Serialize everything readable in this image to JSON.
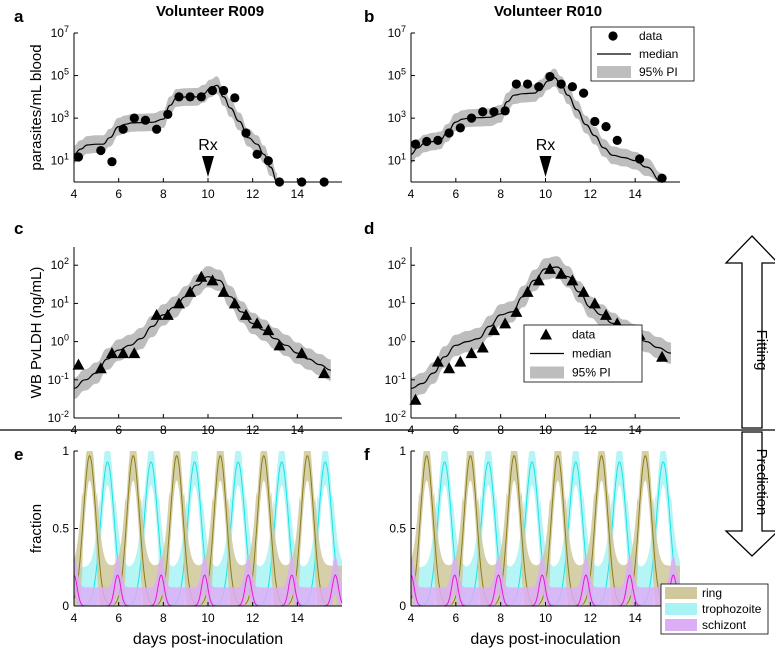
{
  "figure": {
    "titles": [
      "Volunteer R009",
      "Volunteer R010"
    ],
    "side_labels": {
      "fitting": "Fitting",
      "prediction": "Prediction"
    }
  },
  "colors": {
    "pi_band": "#bdbdbd",
    "ring": "#8b7d19",
    "ring_band": "#cfc89a",
    "trophozoite": "#19e5e5",
    "trophozoite_band": "#a8f3f3",
    "schizont": "#e619d6",
    "schizont_band": "#dcaef6"
  },
  "chart_data": [
    {
      "panel": "a",
      "type": "scatter",
      "title": "Volunteer R009",
      "ylabel": "parasites/mL blood",
      "xlabel": "",
      "yscale": "log",
      "ylim": [
        1,
        10000000
      ],
      "xlim": [
        4,
        16
      ],
      "xticks": [
        "4",
        "6",
        "8",
        "10",
        "12",
        "14"
      ],
      "yticks": [
        "10^1",
        "10^3",
        "10^5",
        "10^7"
      ],
      "annotation": {
        "text": "Rx",
        "x": 10
      },
      "series": [
        {
          "name": "data",
          "points": [
            [
              4.2,
              15
            ],
            [
              5.2,
              30
            ],
            [
              5.7,
              9
            ],
            [
              6.2,
              300
            ],
            [
              6.7,
              1000
            ],
            [
              7.2,
              800
            ],
            [
              7.7,
              300
            ],
            [
              8.2,
              1500
            ],
            [
              8.7,
              10000
            ],
            [
              9.2,
              10000
            ],
            [
              9.7,
              10000
            ],
            [
              10.2,
              20000
            ],
            [
              10.7,
              20000
            ],
            [
              11.2,
              9000
            ],
            [
              11.7,
              200
            ],
            [
              12.2,
              20
            ],
            [
              12.7,
              10
            ],
            [
              13.2,
              1
            ],
            [
              14.2,
              1
            ],
            [
              15.2,
              1
            ]
          ]
        },
        {
          "name": "median",
          "points": [
            [
              4.0,
              20
            ],
            [
              4.3,
              35
            ],
            [
              4.6,
              55
            ],
            [
              5.0,
              60
            ],
            [
              5.3,
              60
            ],
            [
              5.6,
              120
            ],
            [
              6.0,
              400
            ],
            [
              6.3,
              520
            ],
            [
              6.6,
              600
            ],
            [
              7.0,
              620
            ],
            [
              7.5,
              640
            ],
            [
              8.0,
              900
            ],
            [
              8.3,
              4000
            ],
            [
              8.6,
              9000
            ],
            [
              9.0,
              9800
            ],
            [
              9.5,
              10000
            ],
            [
              9.8,
              14000
            ],
            [
              10.1,
              25000
            ],
            [
              10.4,
              35000
            ],
            [
              10.7,
              10000
            ],
            [
              11.0,
              3000
            ],
            [
              11.4,
              700
            ],
            [
              11.8,
              120
            ],
            [
              12.2,
              60
            ],
            [
              12.5,
              20
            ],
            [
              12.8,
              5
            ],
            [
              13.1,
              1
            ]
          ]
        }
      ]
    },
    {
      "panel": "b",
      "type": "scatter",
      "title": "Volunteer R010",
      "ylabel": "",
      "xlabel": "",
      "yscale": "log",
      "ylim": [
        1,
        10000000
      ],
      "xlim": [
        4,
        16
      ],
      "xticks": [
        "4",
        "6",
        "8",
        "10",
        "12",
        "14"
      ],
      "yticks": [
        "10^1",
        "10^3",
        "10^5",
        "10^7"
      ],
      "annotation": {
        "text": "Rx",
        "x": 10
      },
      "legend": {
        "items": [
          "data",
          "median",
          "95% PI"
        ],
        "placement": "top-right"
      },
      "series": [
        {
          "name": "data",
          "points": [
            [
              4.2,
              60
            ],
            [
              4.7,
              80
            ],
            [
              5.2,
              90
            ],
            [
              5.7,
              200
            ],
            [
              6.2,
              350
            ],
            [
              6.7,
              1000
            ],
            [
              7.2,
              2000
            ],
            [
              7.7,
              2000
            ],
            [
              8.2,
              2200
            ],
            [
              8.7,
              40000
            ],
            [
              9.2,
              40000
            ],
            [
              9.7,
              30000
            ],
            [
              10.2,
              90000
            ],
            [
              10.7,
              40000
            ],
            [
              11.2,
              30000
            ],
            [
              11.7,
              15000
            ],
            [
              12.2,
              700
            ],
            [
              12.7,
              400
            ],
            [
              13.2,
              90
            ],
            [
              14.2,
              12
            ],
            [
              15.2,
              1.5
            ]
          ]
        },
        {
          "name": "median",
          "points": [
            [
              4.0,
              20
            ],
            [
              4.3,
              40
            ],
            [
              4.6,
              65
            ],
            [
              5.0,
              80
            ],
            [
              5.3,
              90
            ],
            [
              5.6,
              200
            ],
            [
              6.0,
              650
            ],
            [
              6.3,
              900
            ],
            [
              6.6,
              1000
            ],
            [
              7.0,
              1050
            ],
            [
              7.5,
              1100
            ],
            [
              8.0,
              1600
            ],
            [
              8.3,
              6000
            ],
            [
              8.6,
              12000
            ],
            [
              9.0,
              14000
            ],
            [
              9.5,
              15000
            ],
            [
              9.8,
              25000
            ],
            [
              10.1,
              55000
            ],
            [
              10.4,
              80000
            ],
            [
              10.7,
              35000
            ],
            [
              11.0,
              12000
            ],
            [
              11.4,
              2500
            ],
            [
              11.8,
              500
            ],
            [
              12.2,
              150
            ],
            [
              12.6,
              40
            ],
            [
              13.0,
              18
            ],
            [
              13.5,
              14
            ],
            [
              14.0,
              10
            ],
            [
              14.5,
              5
            ],
            [
              15.2,
              1
            ]
          ]
        }
      ]
    },
    {
      "panel": "c",
      "type": "scatter",
      "title": "",
      "ylabel": "WB PvLDH (ng/mL)",
      "xlabel": "",
      "yscale": "log",
      "ylim": [
        0.01,
        300
      ],
      "xlim": [
        4,
        16
      ],
      "xticks": [
        "4",
        "6",
        "8",
        "10",
        "12",
        "14"
      ],
      "yticks": [
        "10^-2",
        "10^-1",
        "10^0",
        "10^1",
        "10^2"
      ],
      "series": [
        {
          "name": "data",
          "points": [
            [
              4.2,
              0.25
            ],
            [
              5.2,
              0.2
            ],
            [
              5.7,
              0.5
            ],
            [
              6.2,
              0.5
            ],
            [
              6.7,
              0.5
            ],
            [
              7.7,
              5
            ],
            [
              8.2,
              5
            ],
            [
              8.7,
              10
            ],
            [
              9.2,
              20
            ],
            [
              9.7,
              50
            ],
            [
              10.2,
              40
            ],
            [
              10.7,
              20
            ],
            [
              11.2,
              10
            ],
            [
              11.7,
              5
            ],
            [
              12.2,
              3
            ],
            [
              12.7,
              2
            ],
            [
              13.2,
              0.8
            ],
            [
              14.2,
              0.5
            ],
            [
              15.2,
              0.15
            ]
          ]
        },
        {
          "name": "median",
          "points": [
            [
              4.0,
              0.06
            ],
            [
              4.5,
              0.1
            ],
            [
              5.0,
              0.15
            ],
            [
              5.5,
              0.35
            ],
            [
              6.0,
              0.6
            ],
            [
              6.5,
              0.8
            ],
            [
              7.0,
              1.2
            ],
            [
              7.5,
              2.5
            ],
            [
              8.0,
              5
            ],
            [
              8.5,
              8
            ],
            [
              9.0,
              15
            ],
            [
              9.5,
              30
            ],
            [
              10.0,
              50
            ],
            [
              10.5,
              40
            ],
            [
              11.0,
              15
            ],
            [
              11.5,
              6
            ],
            [
              12.0,
              3
            ],
            [
              12.5,
              2
            ],
            [
              13.0,
              1.2
            ],
            [
              13.5,
              0.8
            ],
            [
              14.0,
              0.5
            ],
            [
              14.5,
              0.35
            ],
            [
              15.0,
              0.25
            ],
            [
              15.5,
              0.18
            ]
          ]
        }
      ]
    },
    {
      "panel": "d",
      "type": "scatter",
      "title": "",
      "ylabel": "",
      "xlabel": "",
      "yscale": "log",
      "ylim": [
        0.01,
        300
      ],
      "xlim": [
        4,
        16
      ],
      "xticks": [
        "4",
        "6",
        "8",
        "10",
        "12",
        "14"
      ],
      "yticks": [
        "10^-2",
        "10^-1",
        "10^0",
        "10^1",
        "10^2"
      ],
      "legend": {
        "items": [
          "data",
          "median",
          "95% PI"
        ],
        "placement": "bottom-right"
      },
      "series": [
        {
          "name": "data",
          "points": [
            [
              4.2,
              0.03
            ],
            [
              5.2,
              0.3
            ],
            [
              5.7,
              0.2
            ],
            [
              6.2,
              0.3
            ],
            [
              6.7,
              0.5
            ],
            [
              7.2,
              0.7
            ],
            [
              7.7,
              2
            ],
            [
              8.2,
              3
            ],
            [
              8.7,
              6
            ],
            [
              9.2,
              20
            ],
            [
              9.7,
              40
            ],
            [
              10.2,
              80
            ],
            [
              10.7,
              60
            ],
            [
              11.2,
              40
            ],
            [
              11.7,
              20
            ],
            [
              12.2,
              10
            ],
            [
              12.7,
              5
            ],
            [
              13.2,
              3
            ],
            [
              14.2,
              1.5
            ],
            [
              15.2,
              0.4
            ]
          ]
        },
        {
          "name": "median",
          "points": [
            [
              4.0,
              0.06
            ],
            [
              4.5,
              0.08
            ],
            [
              5.0,
              0.15
            ],
            [
              5.5,
              0.4
            ],
            [
              6.0,
              0.8
            ],
            [
              6.5,
              1.0
            ],
            [
              7.0,
              1.2
            ],
            [
              7.5,
              2.5
            ],
            [
              8.0,
              5
            ],
            [
              8.5,
              6
            ],
            [
              9.0,
              15
            ],
            [
              9.5,
              40
            ],
            [
              10.0,
              80
            ],
            [
              10.5,
              90
            ],
            [
              11.0,
              50
            ],
            [
              11.5,
              20
            ],
            [
              12.0,
              8
            ],
            [
              12.5,
              5
            ],
            [
              13.0,
              3
            ],
            [
              13.5,
              2
            ],
            [
              14.0,
              1.5
            ],
            [
              14.5,
              1
            ],
            [
              15.0,
              0.7
            ],
            [
              15.6,
              0.5
            ]
          ]
        }
      ]
    },
    {
      "panel": "e",
      "type": "line",
      "title": "",
      "ylabel": "fraction",
      "xlabel": "days post-inoculation",
      "ylim": [
        0,
        1
      ],
      "xlim": [
        4,
        16
      ],
      "xticks": [
        "4",
        "6",
        "8",
        "10",
        "12",
        "14"
      ],
      "yticks": [
        "0",
        "0.5",
        "1"
      ],
      "cycle_period_days": 1.95,
      "series": [
        {
          "name": "ring",
          "peak_days": [
            4.7,
            6.65,
            8.6,
            10.55,
            12.5,
            14.45
          ],
          "peak_value": 0.97
        },
        {
          "name": "trophozoite",
          "peak_days": [
            5.5,
            7.45,
            9.4,
            11.35,
            13.3,
            15.25
          ],
          "peak_value": 0.93
        },
        {
          "name": "schizont",
          "peak_days": [
            4.0,
            5.95,
            7.9,
            9.85,
            11.8,
            13.75,
            15.7
          ],
          "peak_value": 0.2
        }
      ]
    },
    {
      "panel": "f",
      "type": "line",
      "title": "",
      "ylabel": "",
      "xlabel": "days post-inoculation",
      "ylim": [
        0,
        1
      ],
      "xlim": [
        4,
        16
      ],
      "xticks": [
        "4",
        "6",
        "8",
        "10",
        "12",
        "14"
      ],
      "yticks": [
        "0",
        "0.5",
        "1"
      ],
      "cycle_period_days": 1.95,
      "legend": {
        "items": [
          "ring",
          "trophozoite",
          "schizont"
        ],
        "placement": "bottom-right"
      },
      "series": [
        {
          "name": "ring",
          "peak_days": [
            4.7,
            6.65,
            8.6,
            10.55,
            12.5,
            14.45
          ],
          "peak_value": 0.97
        },
        {
          "name": "trophozoite",
          "peak_days": [
            5.5,
            7.45,
            9.4,
            11.35,
            13.3,
            15.25
          ],
          "peak_value": 0.93
        },
        {
          "name": "schizont",
          "peak_days": [
            4.0,
            5.95,
            7.9,
            9.85,
            11.8,
            13.75,
            15.7
          ],
          "peak_value": 0.2
        }
      ]
    }
  ]
}
